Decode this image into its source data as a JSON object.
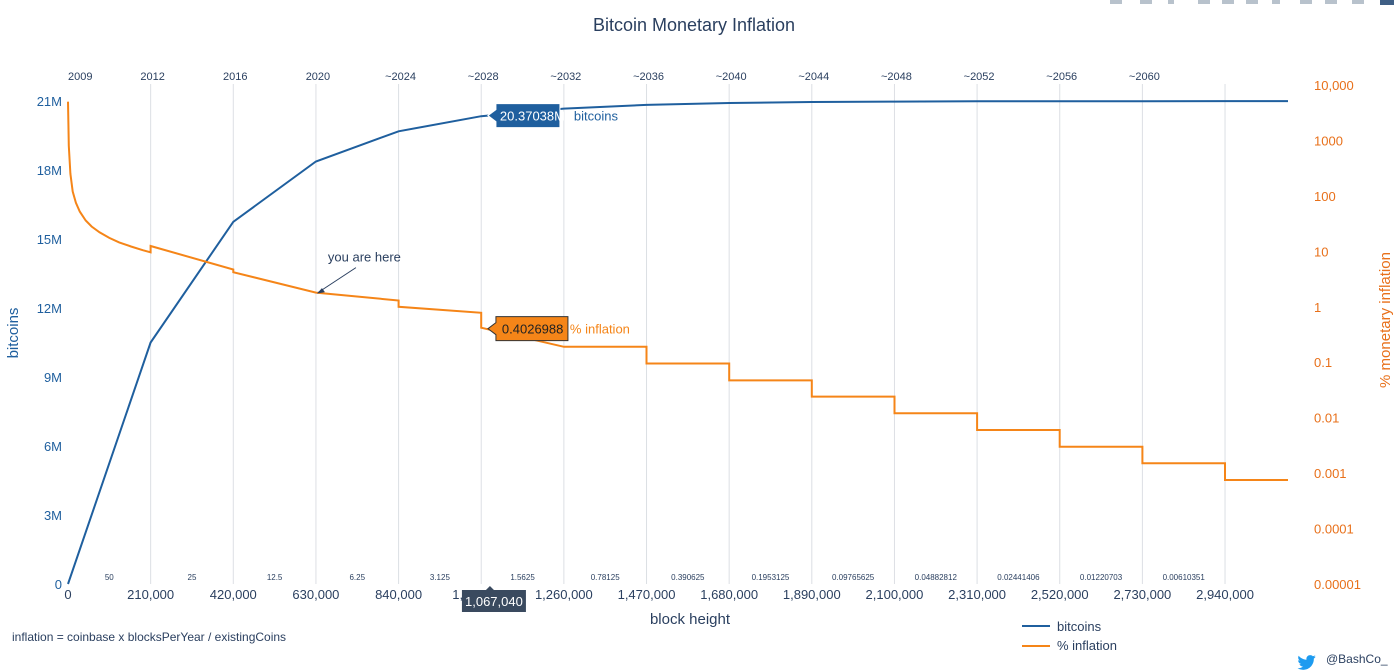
{
  "chart_data": {
    "type": "line",
    "title": "Bitcoin Monetary Inflation",
    "xlabel": "block height",
    "ylabel": "bitcoins",
    "y2label": "% monetary inflation",
    "xlim": [
      0,
      3100000
    ],
    "ylim": [
      0,
      21700000
    ],
    "y2lim": [
      1e-05,
      10000
    ],
    "y2_scale": "log",
    "x_ticks": [
      "0",
      "210,000",
      "420,000",
      "630,000",
      "840,000",
      "1,050,000",
      "1,260,000",
      "1,470,000",
      "1,680,000",
      "1,890,000",
      "2,100,000",
      "2,310,000",
      "2,520,000",
      "2,730,000",
      "2,940,000"
    ],
    "x_tick_values": [
      0,
      210000,
      420000,
      630000,
      840000,
      1050000,
      1260000,
      1470000,
      1680000,
      1890000,
      2100000,
      2310000,
      2520000,
      2730000,
      2940000
    ],
    "y_ticks": [
      "0",
      "3M",
      "6M",
      "9M",
      "12M",
      "15M",
      "18M",
      "21M"
    ],
    "y_tick_values": [
      0,
      3000000,
      6000000,
      9000000,
      12000000,
      15000000,
      18000000,
      21000000
    ],
    "y2_ticks": [
      "0.00001",
      "0.0001",
      "0.001",
      "0.01",
      "0.1",
      "1",
      "10",
      "100",
      "1000",
      "10,000"
    ],
    "y2_tick_values": [
      1e-05,
      0.0001,
      0.001,
      0.01,
      0.1,
      1,
      10,
      100,
      1000,
      10000
    ],
    "era_labels": [
      "2009",
      "2012",
      "2016",
      "2020",
      "~2024",
      "~2028",
      "~2032",
      "~2036",
      "~2040",
      "~2044",
      "~2048",
      "~2052",
      "~2056",
      "~2060"
    ],
    "reward_labels": [
      "50",
      "25",
      "12.5",
      "6.25",
      "3.125",
      "1.5625",
      "0.78125",
      "0.390625",
      "0.1953125",
      "0.09765625",
      "0.04882812",
      "0.02441406",
      "0.01220703",
      "0.00610351"
    ],
    "series": [
      {
        "name": "bitcoins",
        "color": "#1f5f9e",
        "axis": "y",
        "x": [
          0,
          210000,
          420000,
          630000,
          840000,
          1050000,
          1260000,
          1470000,
          1680000,
          1890000,
          2100000,
          2310000,
          2520000,
          2730000,
          2940000,
          3100000
        ],
        "y": [
          0,
          10500000,
          15750000,
          18375000,
          19687500,
          20343750,
          20671875,
          20835937,
          20917969,
          20958984,
          20979492,
          20989746,
          20994873,
          20997437,
          20998718,
          20999000
        ]
      },
      {
        "name": "% inflation",
        "color": "#f58518",
        "axis": "y2",
        "x": [
          1,
          2000,
          6000,
          12000,
          20000,
          30000,
          45000,
          60000,
          80000,
          105000,
          130000,
          160000,
          190000,
          209999,
          210000,
          419999,
          420000,
          629999,
          630000,
          839999,
          840000,
          1049999,
          1050000,
          1259999,
          1260000,
          1469999,
          1470000,
          1679999,
          1680000,
          1889999,
          1890000,
          2099999,
          2100000,
          2309999,
          2310000,
          2519999,
          2520000,
          2729999,
          2730000,
          2939999,
          2940000,
          3100000
        ],
        "y": [
          5000,
          800,
          250,
          120,
          75,
          52,
          36,
          28,
          22,
          17.5,
          14.5,
          12.2,
          10.5,
          9.6,
          12.5,
          4.7,
          4.2,
          1.8,
          1.8,
          1.3,
          1.0,
          0.78,
          0.42,
          0.19,
          0.19,
          0.19,
          0.095,
          0.095,
          0.047,
          0.047,
          0.024,
          0.024,
          0.012,
          0.012,
          0.006,
          0.006,
          0.003,
          0.003,
          0.0015,
          0.0015,
          0.00075,
          0.00075
        ]
      }
    ],
    "hover": {
      "bitcoins_label": "20.37038M",
      "bitcoins_suffix": "bitcoins",
      "inflation_label": "0.4026988",
      "inflation_suffix": "% inflation",
      "x_label": "1,067,040",
      "x_value": 1067040,
      "bitcoins_value": 20370380,
      "inflation_value": 0.4026988
    },
    "annotation": {
      "text": "you are here",
      "x": 630000,
      "y2": 1.8
    },
    "legend": {
      "position": "bottom-right",
      "entries": [
        "bitcoins",
        "% inflation"
      ]
    },
    "footnote": "inflation = coinbase x blocksPerYear / existingCoins",
    "credit": "@BashCo_",
    "grid": true
  }
}
